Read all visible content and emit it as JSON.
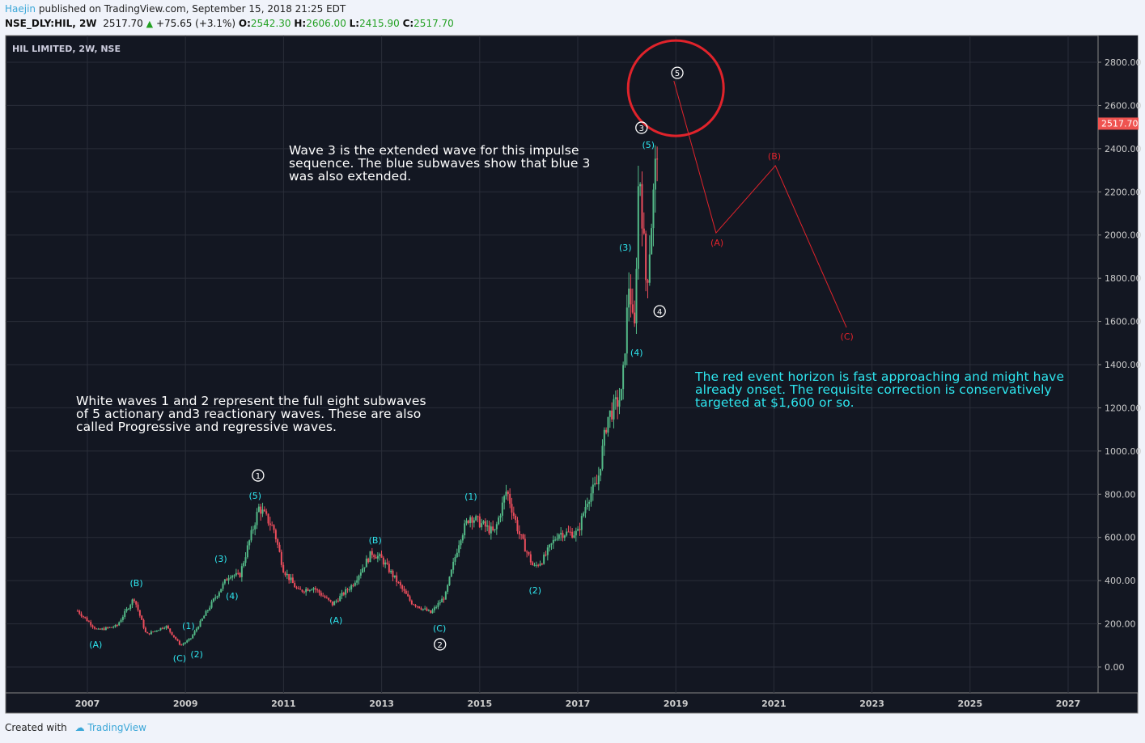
{
  "header": {
    "user": "Haejin",
    "published": " published on TradingView.com, September 15, 2018 21:25 EDT",
    "symbol": "NSE_DLY:HIL, 2W",
    "last": "2517.70",
    "change": "+75.65 (+3.1%)",
    "o_label": "O:",
    "o": "2542.30",
    "h_label": "H:",
    "h": "2606.00",
    "l_label": "L:",
    "l": "2415.90",
    "c_label": "C:",
    "c": "2517.70"
  },
  "chart_title": "HIL LIMITED, 2W, NSE",
  "notes": {
    "wave3": "Wave 3 is the extended wave for this impulse sequence. The blue subwaves show that blue 3 was also extended.",
    "white": "White waves 1 and 2 represent the full eight subwaves of 5 actionary and3 reactionary waves. These are also called Progressive and regressive waves.",
    "red": "The red event horizon is fast approaching and might have already onset. The requisite correction is conservatively targeted at $1,600 or so."
  },
  "footer": {
    "created": "Created with",
    "brand": "TradingView"
  },
  "colors": {
    "bg": "#131722",
    "up": "#53b987",
    "down": "#eb4d5c",
    "cyan": "#2ee6ef",
    "red": "#e0232b",
    "last_price": "#ef5350"
  },
  "chart_data": {
    "type": "candlestick",
    "title": "HIL LIMITED, 2W, NSE",
    "ylim": [
      -120,
      3000
    ],
    "xlim": [
      2005.3,
      2027.6
    ],
    "y_ticks": [
      0,
      200,
      400,
      600,
      800,
      1000,
      1200,
      1400,
      1600,
      1800,
      2000,
      2200,
      2400,
      2600,
      2800
    ],
    "x_ticks": [
      2007,
      2009,
      2011,
      2013,
      2015,
      2017,
      2019,
      2021,
      2023,
      2025,
      2027
    ],
    "last_price": 2517.7,
    "price_path": [
      [
        2006.8,
        260
      ],
      [
        2007.2,
        170
      ],
      [
        2007.6,
        190
      ],
      [
        2007.95,
        320
      ],
      [
        2008.2,
        150
      ],
      [
        2008.6,
        190
      ],
      [
        2008.9,
        100
      ],
      [
        2009.1,
        130
      ],
      [
        2009.6,
        320
      ],
      [
        2009.9,
        430
      ],
      [
        2010.1,
        420
      ],
      [
        2010.5,
        740
      ],
      [
        2010.8,
        640
      ],
      [
        2011.0,
        450
      ],
      [
        2011.3,
        350
      ],
      [
        2011.6,
        370
      ],
      [
        2012.0,
        290
      ],
      [
        2012.4,
        380
      ],
      [
        2012.8,
        530
      ],
      [
        2013.0,
        500
      ],
      [
        2013.3,
        400
      ],
      [
        2013.6,
        300
      ],
      [
        2014.0,
        250
      ],
      [
        2014.3,
        330
      ],
      [
        2014.6,
        600
      ],
      [
        2014.8,
        700
      ],
      [
        2015.3,
        620
      ],
      [
        2015.55,
        820
      ],
      [
        2015.8,
        620
      ],
      [
        2016.1,
        460
      ],
      [
        2016.3,
        500
      ],
      [
        2016.6,
        620
      ],
      [
        2017.0,
        620
      ],
      [
        2017.2,
        780
      ],
      [
        2017.4,
        850
      ],
      [
        2017.6,
        1150
      ],
      [
        2017.9,
        1260
      ],
      [
        2018.05,
        1800
      ],
      [
        2018.15,
        1500
      ],
      [
        2018.25,
        2350
      ],
      [
        2018.4,
        1750
      ],
      [
        2018.5,
        2050
      ],
      [
        2018.65,
        2517
      ]
    ],
    "forecast": {
      "points": [
        [
          2018.96,
          2714
        ],
        [
          2019.82,
          2010
        ],
        [
          2021.03,
          2321
        ],
        [
          2022.48,
          1572
        ]
      ]
    },
    "event_circle": {
      "x": 2019.0,
      "y": 2680
    },
    "white_labels": [
      {
        "t": "1",
        "x": 2010.48,
        "y": 887
      },
      {
        "t": "2",
        "x": 2014.19,
        "y": 105
      },
      {
        "t": "3",
        "x": 2018.3,
        "y": 2497
      },
      {
        "t": "4",
        "x": 2018.67,
        "y": 1647
      },
      {
        "t": "5",
        "x": 2019.03,
        "y": 2751
      }
    ],
    "cyan_labels": [
      {
        "t": "(A)",
        "x": 2007.17,
        "y": 105
      },
      {
        "t": "(B)",
        "x": 2008.0,
        "y": 389
      },
      {
        "t": "(C)",
        "x": 2008.88,
        "y": 41
      },
      {
        "t": "(1)",
        "x": 2009.06,
        "y": 191
      },
      {
        "t": "(2)",
        "x": 2009.23,
        "y": 60
      },
      {
        "t": "(3)",
        "x": 2009.72,
        "y": 502
      },
      {
        "t": "(4)",
        "x": 2009.95,
        "y": 329
      },
      {
        "t": "(5)",
        "x": 2010.42,
        "y": 793
      },
      {
        "t": "(A)",
        "x": 2012.07,
        "y": 217
      },
      {
        "t": "(B)",
        "x": 2012.87,
        "y": 588
      },
      {
        "t": "(C)",
        "x": 2014.18,
        "y": 180
      },
      {
        "t": "(1)",
        "x": 2014.82,
        "y": 790
      },
      {
        "t": "(2)",
        "x": 2016.13,
        "y": 356
      },
      {
        "t": "(3)",
        "x": 2017.97,
        "y": 1943
      },
      {
        "t": "(4)",
        "x": 2018.2,
        "y": 1456
      },
      {
        "t": "(5)",
        "x": 2018.44,
        "y": 2418
      }
    ],
    "red_labels": [
      {
        "t": "(A)",
        "x": 2019.84,
        "y": 1965
      },
      {
        "t": "(B)",
        "x": 2021.01,
        "y": 2366
      },
      {
        "t": "(C)",
        "x": 2022.49,
        "y": 1531
      }
    ]
  }
}
